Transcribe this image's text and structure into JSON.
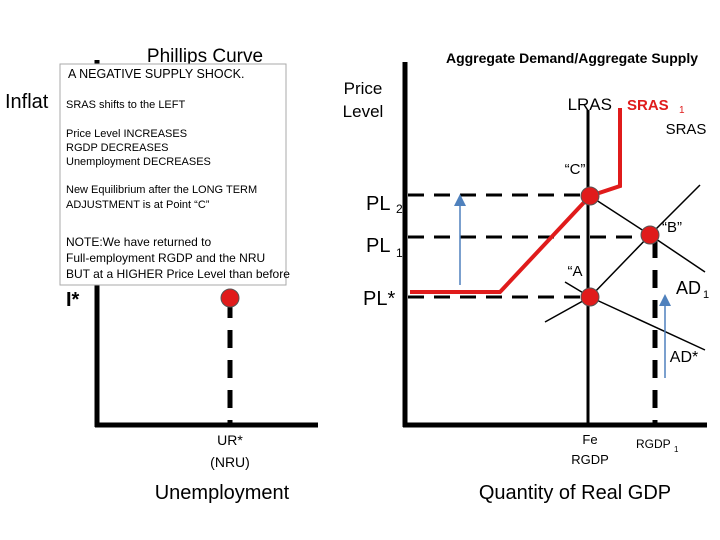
{
  "left_panel": {
    "title": "Phillips Curve",
    "y_label": "Inflat",
    "i_star": "I*",
    "ur_star": "UR*",
    "nru": "(NRU)",
    "x_label": "Unemployment"
  },
  "note_box": {
    "heading": "A NEGATIVE SUPPLY SHOCK.",
    "shift": "SRAS shifts to the LEFT",
    "effects": [
      "Price Level INCREASES",
      "RGDP DECREASES",
      "Unemployment DECREASES"
    ],
    "equilibrium": [
      "New Equilibrium after the LONG TERM",
      "ADJUSTMENT is at Point “C”"
    ],
    "note": [
      "NOTE:We have returned to",
      "Full-employment RGDP and the NRU",
      "BUT at a HIGHER Price Level than before"
    ]
  },
  "right_panel": {
    "title": "Aggregate Demand/Aggregate Supply",
    "y_label": [
      "Price",
      "Level"
    ],
    "lras": "LRAS",
    "sras1": "SRAS",
    "sras1_sub": "1",
    "sras": "SRAS",
    "point_c": "“C”",
    "point_b": "“B”",
    "point_a": "“A",
    "pl2": "PL",
    "pl2_sub": "2",
    "pl1": "PL",
    "pl1_sub": "1",
    "pl_star": "PL*",
    "ad1": "AD",
    "ad1_sub": "1",
    "ad_star": "AD*",
    "fe": "Fe",
    "fe_rgdp": "RGDP",
    "rgdp1": "RGDP",
    "rgdp1_sub": "1",
    "x_label": "Quantity of Real GDP"
  }
}
